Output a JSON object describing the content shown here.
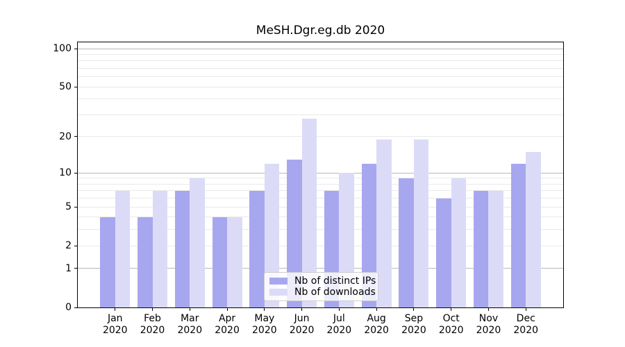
{
  "chart_data": {
    "type": "bar",
    "title": "MeSH.Dgr.eg.db 2020",
    "categories": [
      "Jan 2020",
      "Feb 2020",
      "Mar 2020",
      "Apr 2020",
      "May 2020",
      "Jun 2020",
      "Jul 2020",
      "Aug 2020",
      "Sep 2020",
      "Oct 2020",
      "Nov 2020",
      "Dec 2020"
    ],
    "months": [
      "Jan",
      "Feb",
      "Mar",
      "Apr",
      "May",
      "Jun",
      "Jul",
      "Aug",
      "Sep",
      "Oct",
      "Nov",
      "Dec"
    ],
    "year_label": "2020",
    "series": [
      {
        "name": "Nb of distinct IPs",
        "color": "#a7a7ef",
        "values": [
          4,
          4,
          7,
          4,
          7,
          13,
          7,
          12,
          9,
          6,
          7,
          12
        ]
      },
      {
        "name": "Nb of downloads",
        "color": "#dbdbf8",
        "values": [
          7,
          7,
          9,
          4,
          12,
          28,
          10,
          19,
          19,
          9,
          7,
          15
        ]
      }
    ],
    "yscale": "log1p",
    "ylim": [
      0,
      112
    ],
    "y_ticks": [
      100,
      50,
      20,
      10,
      5,
      2,
      1,
      0
    ],
    "grid": {
      "major": [
        100,
        10,
        1
      ],
      "minor": [
        90,
        80,
        70,
        60,
        50,
        40,
        30,
        20,
        9,
        8,
        7,
        6,
        5,
        4,
        3,
        2
      ]
    },
    "legend_position": "lower center"
  },
  "colors": {
    "bar_ips": "#a7a7ef",
    "bar_downloads": "#dbdbf8",
    "grid_major": "#b8b8b8",
    "grid_minor": "#e9e9e9",
    "axis": "#000000",
    "legend_border": "#cccccc"
  }
}
